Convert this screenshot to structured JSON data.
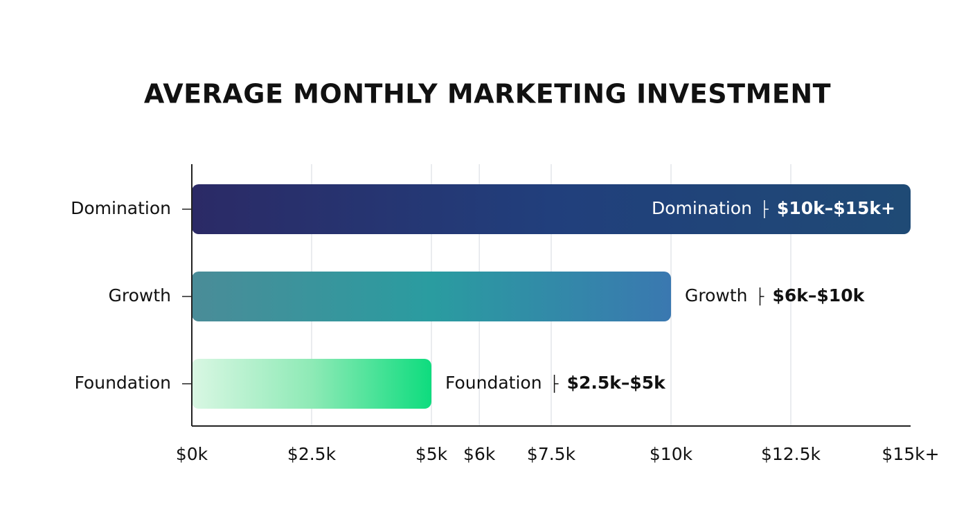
{
  "chart_data": {
    "type": "bar",
    "orientation": "horizontal",
    "title": "AVERAGE MONTHLY MARKETING INVESTMENT",
    "categories": [
      "Domination",
      "Growth",
      "Foundation"
    ],
    "values": [
      15000,
      10000,
      5000
    ],
    "value_labels": [
      "$10k–$15k+",
      "$6k–$10k",
      "$2.5k–$5k"
    ],
    "gradients": [
      [
        "#2b2a66",
        "#213f7c",
        "#1f4a75"
      ],
      [
        "#4a8c98",
        "#2a9ca0",
        "#3a78b0"
      ],
      [
        "#d9f7e3",
        "#8eeab6",
        "#0edc7e"
      ]
    ],
    "xlim": [
      0,
      15000
    ],
    "xticks": [
      {
        "value": 0,
        "label": "$0k"
      },
      {
        "value": 2500,
        "label": "$2.5k"
      },
      {
        "value": 5000,
        "label": "$5k"
      },
      {
        "value": 6000,
        "label": "$6k"
      },
      {
        "value": 7500,
        "label": "$7.5k"
      },
      {
        "value": 10000,
        "label": "$10k"
      },
      {
        "value": 12500,
        "label": "$12.5k"
      },
      {
        "value": 15000,
        "label": "$15k+"
      }
    ],
    "grid": true
  }
}
